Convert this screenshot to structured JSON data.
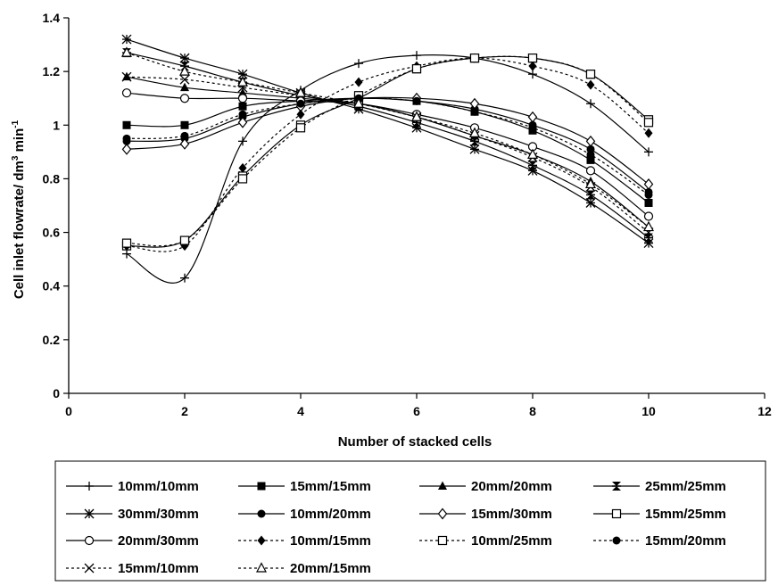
{
  "chart_data": {
    "type": "line",
    "title": "",
    "xlabel": "Number of stacked cells",
    "ylabel": "Cell inlet flowrate/ dm",
    "ylabel_exp1": "3",
    "ylabel_mid": " min",
    "ylabel_exp2": "-1",
    "xlim": [
      0,
      12
    ],
    "ylim": [
      0,
      1.4
    ],
    "xticks": [
      0,
      2,
      4,
      6,
      8,
      10,
      12
    ],
    "yticks": [
      0,
      0.2,
      0.4,
      0.6,
      0.8,
      1,
      1.2,
      1.4
    ],
    "ytick_labels": [
      "0",
      "0.2",
      "0.4",
      "0.6",
      "0.8",
      "1",
      "1.2",
      "1.4"
    ],
    "grid": false,
    "legend_position": "bottom",
    "x": [
      1,
      2,
      3,
      4,
      5,
      6,
      7,
      8,
      9,
      10
    ],
    "series": [
      {
        "name": "10mm/10mm",
        "marker": "plus",
        "dash": "solid",
        "values": [
          0.52,
          0.43,
          0.94,
          1.13,
          1.23,
          1.26,
          1.25,
          1.19,
          1.08,
          0.9
        ]
      },
      {
        "name": "15mm/15mm",
        "marker": "square-filled",
        "dash": "solid",
        "values": [
          1.0,
          1.0,
          1.07,
          1.09,
          1.1,
          1.09,
          1.05,
          0.98,
          0.87,
          0.71
        ]
      },
      {
        "name": "20mm/20mm",
        "marker": "triangle-filled",
        "dash": "solid",
        "values": [
          1.18,
          1.14,
          1.12,
          1.1,
          1.08,
          1.03,
          0.96,
          0.89,
          0.79,
          0.62
        ]
      },
      {
        "name": "25mm/25mm",
        "marker": "hourglass",
        "dash": "solid",
        "values": [
          1.27,
          1.22,
          1.16,
          1.11,
          1.07,
          1.01,
          0.94,
          0.85,
          0.74,
          0.58
        ]
      },
      {
        "name": "30mm/30mm",
        "marker": "star",
        "dash": "solid",
        "values": [
          1.32,
          1.25,
          1.19,
          1.12,
          1.06,
          0.99,
          0.91,
          0.83,
          0.71,
          0.56
        ]
      },
      {
        "name": "10mm/20mm",
        "marker": "circle-filled",
        "dash": "solid",
        "values": [
          0.94,
          0.95,
          1.03,
          1.08,
          1.1,
          1.09,
          1.06,
          1.0,
          0.91,
          0.75
        ]
      },
      {
        "name": "15mm/30mm",
        "marker": "diamond-open",
        "dash": "solid",
        "values": [
          0.91,
          0.93,
          1.01,
          1.07,
          1.1,
          1.1,
          1.08,
          1.03,
          0.94,
          0.78
        ]
      },
      {
        "name": "15mm/25mm",
        "marker": "square-open",
        "dash": "solid",
        "values": [
          0.55,
          0.57,
          0.81,
          1.0,
          1.1,
          1.21,
          1.25,
          1.25,
          1.19,
          1.02
        ]
      },
      {
        "name": "20mm/30mm",
        "marker": "circle-open",
        "dash": "solid",
        "values": [
          1.12,
          1.1,
          1.1,
          1.09,
          1.08,
          1.04,
          0.99,
          0.92,
          0.83,
          0.66
        ]
      },
      {
        "name": "10mm/15mm",
        "marker": "diamond-filled",
        "dash": "dotted",
        "values": [
          0.55,
          0.55,
          0.84,
          1.04,
          1.16,
          1.22,
          1.25,
          1.22,
          1.15,
          0.97
        ]
      },
      {
        "name": "10mm/25mm",
        "marker": "square-open",
        "dash": "dotted",
        "values": [
          0.56,
          0.57,
          0.8,
          0.99,
          1.11,
          1.21,
          1.25,
          1.25,
          1.19,
          1.01
        ]
      },
      {
        "name": "15mm/20mm",
        "marker": "circle-filled",
        "dash": "dotted",
        "values": [
          0.95,
          0.96,
          1.04,
          1.08,
          1.1,
          1.09,
          1.05,
          0.99,
          0.89,
          0.74
        ]
      },
      {
        "name": "15mm/10mm",
        "marker": "cross",
        "dash": "dotted",
        "values": [
          1.18,
          1.17,
          1.14,
          1.11,
          1.08,
          1.03,
          0.96,
          0.88,
          0.77,
          0.6
        ]
      },
      {
        "name": "20mm/15mm",
        "marker": "triangle-open",
        "dash": "dotted",
        "values": [
          1.27,
          1.2,
          1.16,
          1.12,
          1.08,
          1.03,
          0.97,
          0.89,
          0.78,
          0.62
        ]
      }
    ]
  }
}
